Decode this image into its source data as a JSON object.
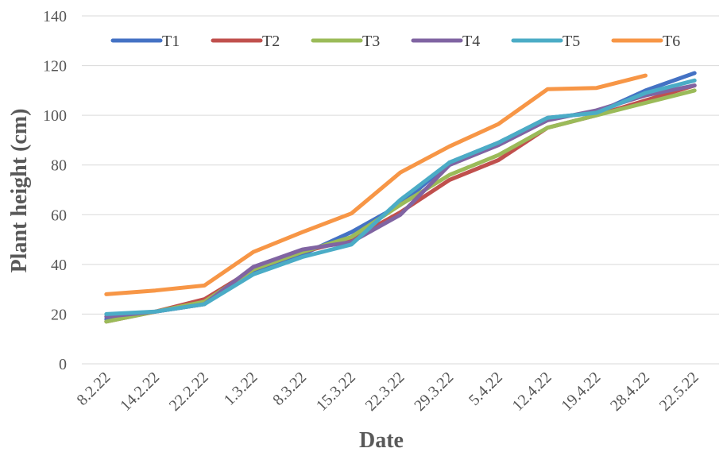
{
  "chart_data": {
    "type": "line",
    "title": "",
    "xlabel": "Date",
    "ylabel": "Plant height (cm)",
    "ylim": [
      0,
      140
    ],
    "yticks": [
      0,
      20,
      40,
      60,
      80,
      100,
      120,
      140
    ],
    "grid": "horizontal",
    "legend_position": "top",
    "categories": [
      "8.2.22",
      "14.2.22",
      "22.2.22",
      "1.3.22",
      "8.3.22",
      "15.3.22",
      "22.3.22",
      "29.3.22",
      "5.4.22",
      "12.4.22",
      "19.4.22",
      "28.4.22",
      "22.5.22"
    ],
    "series": [
      {
        "name": "T1",
        "color": "#4472C4",
        "values": [
          18,
          21,
          24,
          37,
          44,
          53,
          64,
          81,
          89,
          99,
          101,
          110,
          117
        ]
      },
      {
        "name": "T2",
        "color": "#C0504D",
        "values": [
          17,
          21,
          26,
          38,
          45,
          50,
          61,
          74,
          82,
          95,
          100,
          106,
          112
        ]
      },
      {
        "name": "T3",
        "color": "#9BBB59",
        "values": [
          17,
          21,
          25,
          38,
          45,
          51,
          64,
          76,
          84,
          95,
          100,
          105,
          110
        ]
      },
      {
        "name": "T4",
        "color": "#8064A2",
        "values": [
          19,
          21,
          24,
          39,
          46,
          49,
          60,
          80,
          88,
          98,
          102,
          108,
          112
        ]
      },
      {
        "name": "T5",
        "color": "#4BACC6",
        "values": [
          20,
          21,
          24,
          36,
          43,
          48,
          66,
          81,
          89,
          99,
          101,
          109,
          114
        ]
      },
      {
        "name": "T6",
        "color": "#F79646",
        "values": [
          28,
          29.5,
          31.5,
          45,
          53,
          60.5,
          77,
          87.5,
          96.5,
          110.5,
          111,
          116,
          null
        ]
      }
    ]
  }
}
